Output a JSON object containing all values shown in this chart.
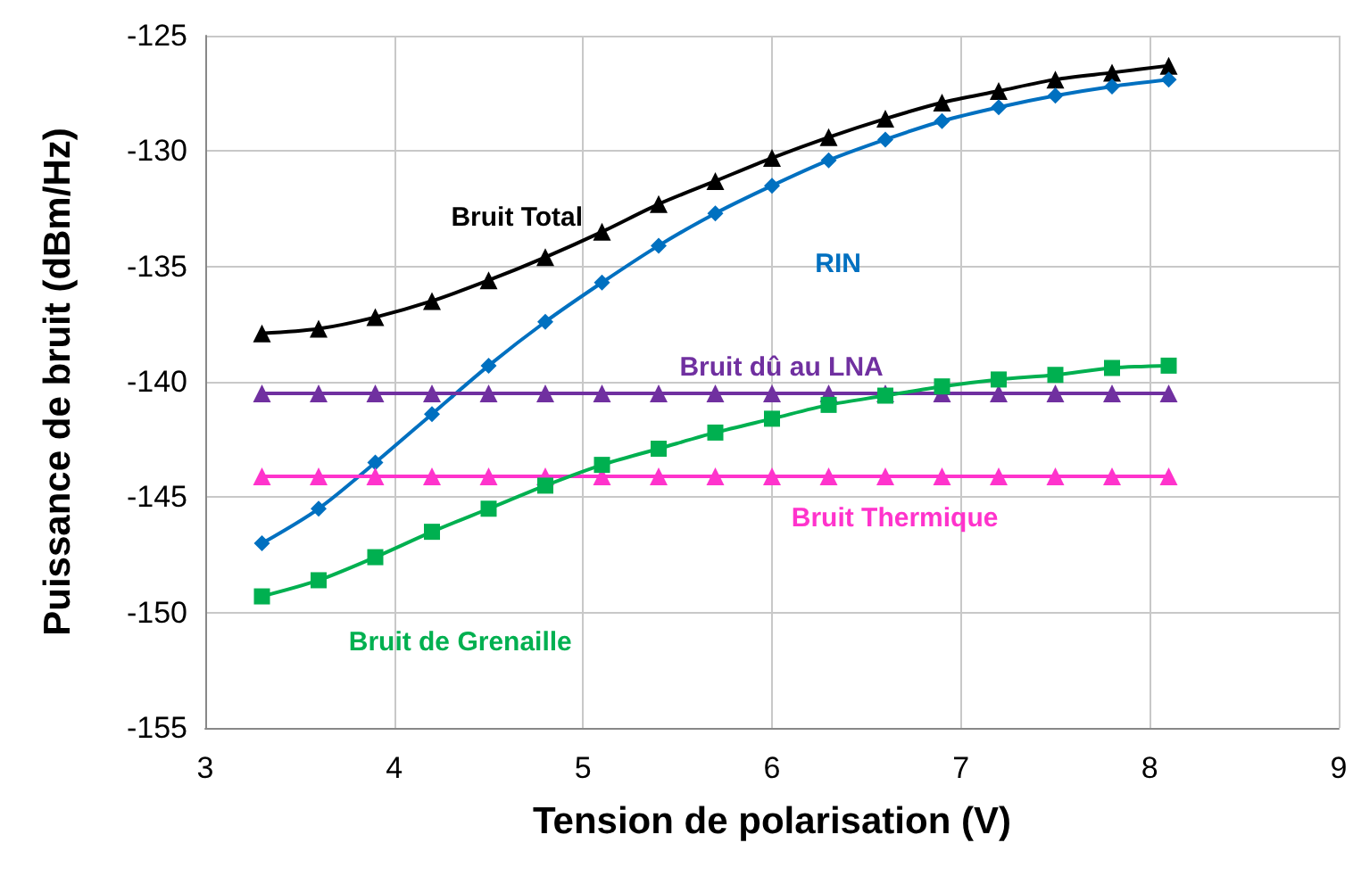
{
  "chart_data": {
    "type": "line",
    "xlabel": "Tension de polarisation (V)",
    "ylabel": "Puissance de bruit (dBm/Hz)",
    "x": [
      3.3,
      3.6,
      3.9,
      4.2,
      4.5,
      4.8,
      5.1,
      5.4,
      5.7,
      6.0,
      6.3,
      6.6,
      6.9,
      7.2,
      7.5,
      7.8,
      8.1
    ],
    "series": [
      {
        "name": "Bruit Total",
        "color": "#000000",
        "marker": "triangle",
        "values": [
          -137.9,
          -137.7,
          -137.2,
          -136.5,
          -135.6,
          -134.6,
          -133.5,
          -132.3,
          -131.3,
          -130.3,
          -129.4,
          -128.6,
          -127.9,
          -127.4,
          -126.9,
          -126.6,
          -126.3
        ]
      },
      {
        "name": "RIN",
        "color": "#0070c0",
        "marker": "diamond",
        "values": [
          -147.0,
          -145.5,
          -143.5,
          -141.4,
          -139.3,
          -137.4,
          -135.7,
          -134.1,
          -132.7,
          -131.5,
          -130.4,
          -129.5,
          -128.7,
          -128.1,
          -127.6,
          -127.2,
          -126.9
        ]
      },
      {
        "name": "Bruit dû au LNA",
        "color": "#7030a0",
        "marker": "triangle",
        "values": [
          -140.5,
          -140.5,
          -140.5,
          -140.5,
          -140.5,
          -140.5,
          -140.5,
          -140.5,
          -140.5,
          -140.5,
          -140.5,
          -140.5,
          -140.5,
          -140.5,
          -140.5,
          -140.5,
          -140.5
        ]
      },
      {
        "name": "Bruit Thermique",
        "color": "#ff33cc",
        "marker": "triangle",
        "values": [
          -144.1,
          -144.1,
          -144.1,
          -144.1,
          -144.1,
          -144.1,
          -144.1,
          -144.1,
          -144.1,
          -144.1,
          -144.1,
          -144.1,
          -144.1,
          -144.1,
          -144.1,
          -144.1,
          -144.1
        ]
      },
      {
        "name": "Bruit de Grenaille",
        "color": "#00b050",
        "marker": "square",
        "values": [
          -149.3,
          -148.6,
          -147.6,
          -146.5,
          -145.5,
          -144.5,
          -143.6,
          -142.9,
          -142.2,
          -141.6,
          -141.0,
          -140.6,
          -140.2,
          -139.9,
          -139.7,
          -139.4,
          -139.3
        ]
      }
    ],
    "xlim": [
      3,
      9
    ],
    "xticks": [
      3,
      4,
      5,
      6,
      7,
      8,
      9
    ],
    "ylim": [
      -155,
      -125
    ],
    "yticks": [
      -155,
      -150,
      -145,
      -140,
      -135,
      -130,
      -125
    ],
    "grid": true,
    "legend": false
  }
}
